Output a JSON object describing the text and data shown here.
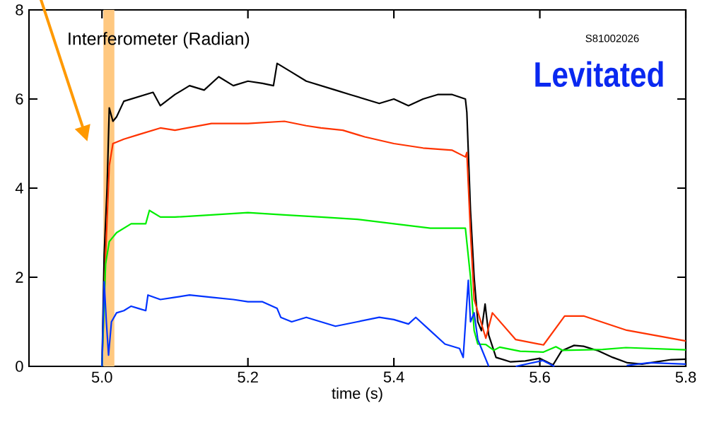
{
  "chart_data": {
    "type": "line",
    "xlabel": "time (s)",
    "annotations": [
      "Interferometer (Radian)",
      "S81002026",
      "Levitated"
    ],
    "xlim": [
      4.9,
      5.8
    ],
    "ylim": [
      0,
      8
    ],
    "xticks": [
      {
        "value": 5.0,
        "label": "5.0"
      },
      {
        "value": 5.2,
        "label": "5.2"
      },
      {
        "value": 5.4,
        "label": "5.4"
      },
      {
        "value": 5.6,
        "label": "5.6"
      },
      {
        "value": 5.8,
        "label": "5.8"
      }
    ],
    "yticks": [
      0,
      2,
      4,
      6,
      8
    ],
    "bands": [
      {
        "axis": "x",
        "from": 5.002,
        "to": 5.017,
        "color": "#ffc880"
      }
    ],
    "marker": "none",
    "line_style": "solid",
    "grid": false,
    "series": [
      {
        "color": "#000000",
        "x": [
          5.0,
          5.003,
          5.007,
          5.01,
          5.015,
          5.02,
          5.03,
          5.05,
          5.07,
          5.08,
          5.1,
          5.12,
          5.14,
          5.16,
          5.18,
          5.2,
          5.22,
          5.235,
          5.24,
          5.26,
          5.28,
          5.3,
          5.32,
          5.34,
          5.36,
          5.38,
          5.4,
          5.42,
          5.44,
          5.46,
          5.48,
          5.498,
          5.5,
          5.505,
          5.51,
          5.515,
          5.52,
          5.525,
          5.53,
          5.54,
          5.56,
          5.58,
          5.6,
          5.618,
          5.63,
          5.647,
          5.66,
          5.68,
          5.7,
          5.72,
          5.74,
          5.76,
          5.78,
          5.8
        ],
        "values": [
          0,
          2.5,
          4.0,
          5.8,
          5.5,
          5.6,
          5.95,
          6.05,
          6.15,
          5.85,
          6.1,
          6.3,
          6.2,
          6.5,
          6.3,
          6.4,
          6.35,
          6.3,
          6.8,
          6.6,
          6.4,
          6.3,
          6.2,
          6.1,
          6.0,
          5.9,
          6.0,
          5.85,
          6.0,
          6.1,
          6.1,
          6.0,
          5.7,
          3.5,
          2.0,
          1.0,
          0.8,
          1.4,
          0.7,
          0.2,
          0.1,
          0.12,
          0.18,
          0.03,
          0.35,
          0.47,
          0.45,
          0.35,
          0.2,
          0.08,
          0.05,
          0.1,
          0.15,
          0.16
        ]
      },
      {
        "color": "#ff3300",
        "x": [
          5.0,
          5.005,
          5.01,
          5.015,
          5.03,
          5.05,
          5.08,
          5.1,
          5.15,
          5.2,
          5.25,
          5.28,
          5.3,
          5.33,
          5.36,
          5.4,
          5.44,
          5.48,
          5.498,
          5.5,
          5.505,
          5.51,
          5.526,
          5.535,
          5.567,
          5.605,
          5.634,
          5.66,
          5.719,
          5.8
        ],
        "values": [
          0,
          2.5,
          4.5,
          5.0,
          5.1,
          5.2,
          5.35,
          5.3,
          5.45,
          5.45,
          5.5,
          5.4,
          5.35,
          5.3,
          5.15,
          5.0,
          4.9,
          4.85,
          4.7,
          4.8,
          3.0,
          1.5,
          0.63,
          1.2,
          0.6,
          0.48,
          1.13,
          1.13,
          0.81,
          0.57
        ]
      },
      {
        "color": "#00ee00",
        "x": [
          5.0,
          5.005,
          5.01,
          5.02,
          5.04,
          5.06,
          5.065,
          5.08,
          5.1,
          5.15,
          5.2,
          5.25,
          5.3,
          5.35,
          5.4,
          5.45,
          5.498,
          5.505,
          5.51,
          5.515,
          5.526,
          5.537,
          5.545,
          5.573,
          5.605,
          5.622,
          5.631,
          5.686,
          5.718,
          5.8
        ],
        "values": [
          0,
          2.3,
          2.8,
          3.0,
          3.2,
          3.2,
          3.5,
          3.35,
          3.35,
          3.4,
          3.45,
          3.4,
          3.35,
          3.3,
          3.2,
          3.1,
          3.1,
          2.0,
          0.8,
          0.5,
          0.49,
          0.36,
          0.43,
          0.34,
          0.32,
          0.44,
          0.36,
          0.38,
          0.42,
          0.37
        ]
      },
      {
        "color": "#0033ff",
        "x": [
          5.0,
          5.003,
          5.006,
          5.009,
          5.013,
          5.02,
          5.03,
          5.04,
          5.05,
          5.06,
          5.063,
          5.08,
          5.1,
          5.12,
          5.15,
          5.18,
          5.2,
          5.22,
          5.24,
          5.245,
          5.26,
          5.28,
          5.3,
          5.32,
          5.35,
          5.38,
          5.4,
          5.42,
          5.43,
          5.45,
          5.47,
          5.49,
          5.495,
          5.502,
          5.505,
          5.51,
          5.515,
          5.52,
          5.53,
          5.55,
          5.567,
          5.604,
          5.62,
          5.67,
          5.719,
          5.75,
          5.8
        ],
        "values": [
          0,
          1.9,
          1.0,
          0.25,
          1.0,
          1.2,
          1.25,
          1.35,
          1.3,
          1.25,
          1.6,
          1.5,
          1.55,
          1.6,
          1.55,
          1.5,
          1.45,
          1.45,
          1.3,
          1.1,
          1.0,
          1.1,
          1.0,
          0.9,
          1.0,
          1.1,
          1.05,
          0.95,
          1.1,
          0.8,
          0.5,
          0.4,
          0.2,
          1.93,
          1.0,
          1.2,
          0.6,
          0.4,
          0,
          null,
          0,
          0.13,
          0,
          null,
          0.02,
          0.08,
          0.05
        ]
      }
    ]
  }
}
